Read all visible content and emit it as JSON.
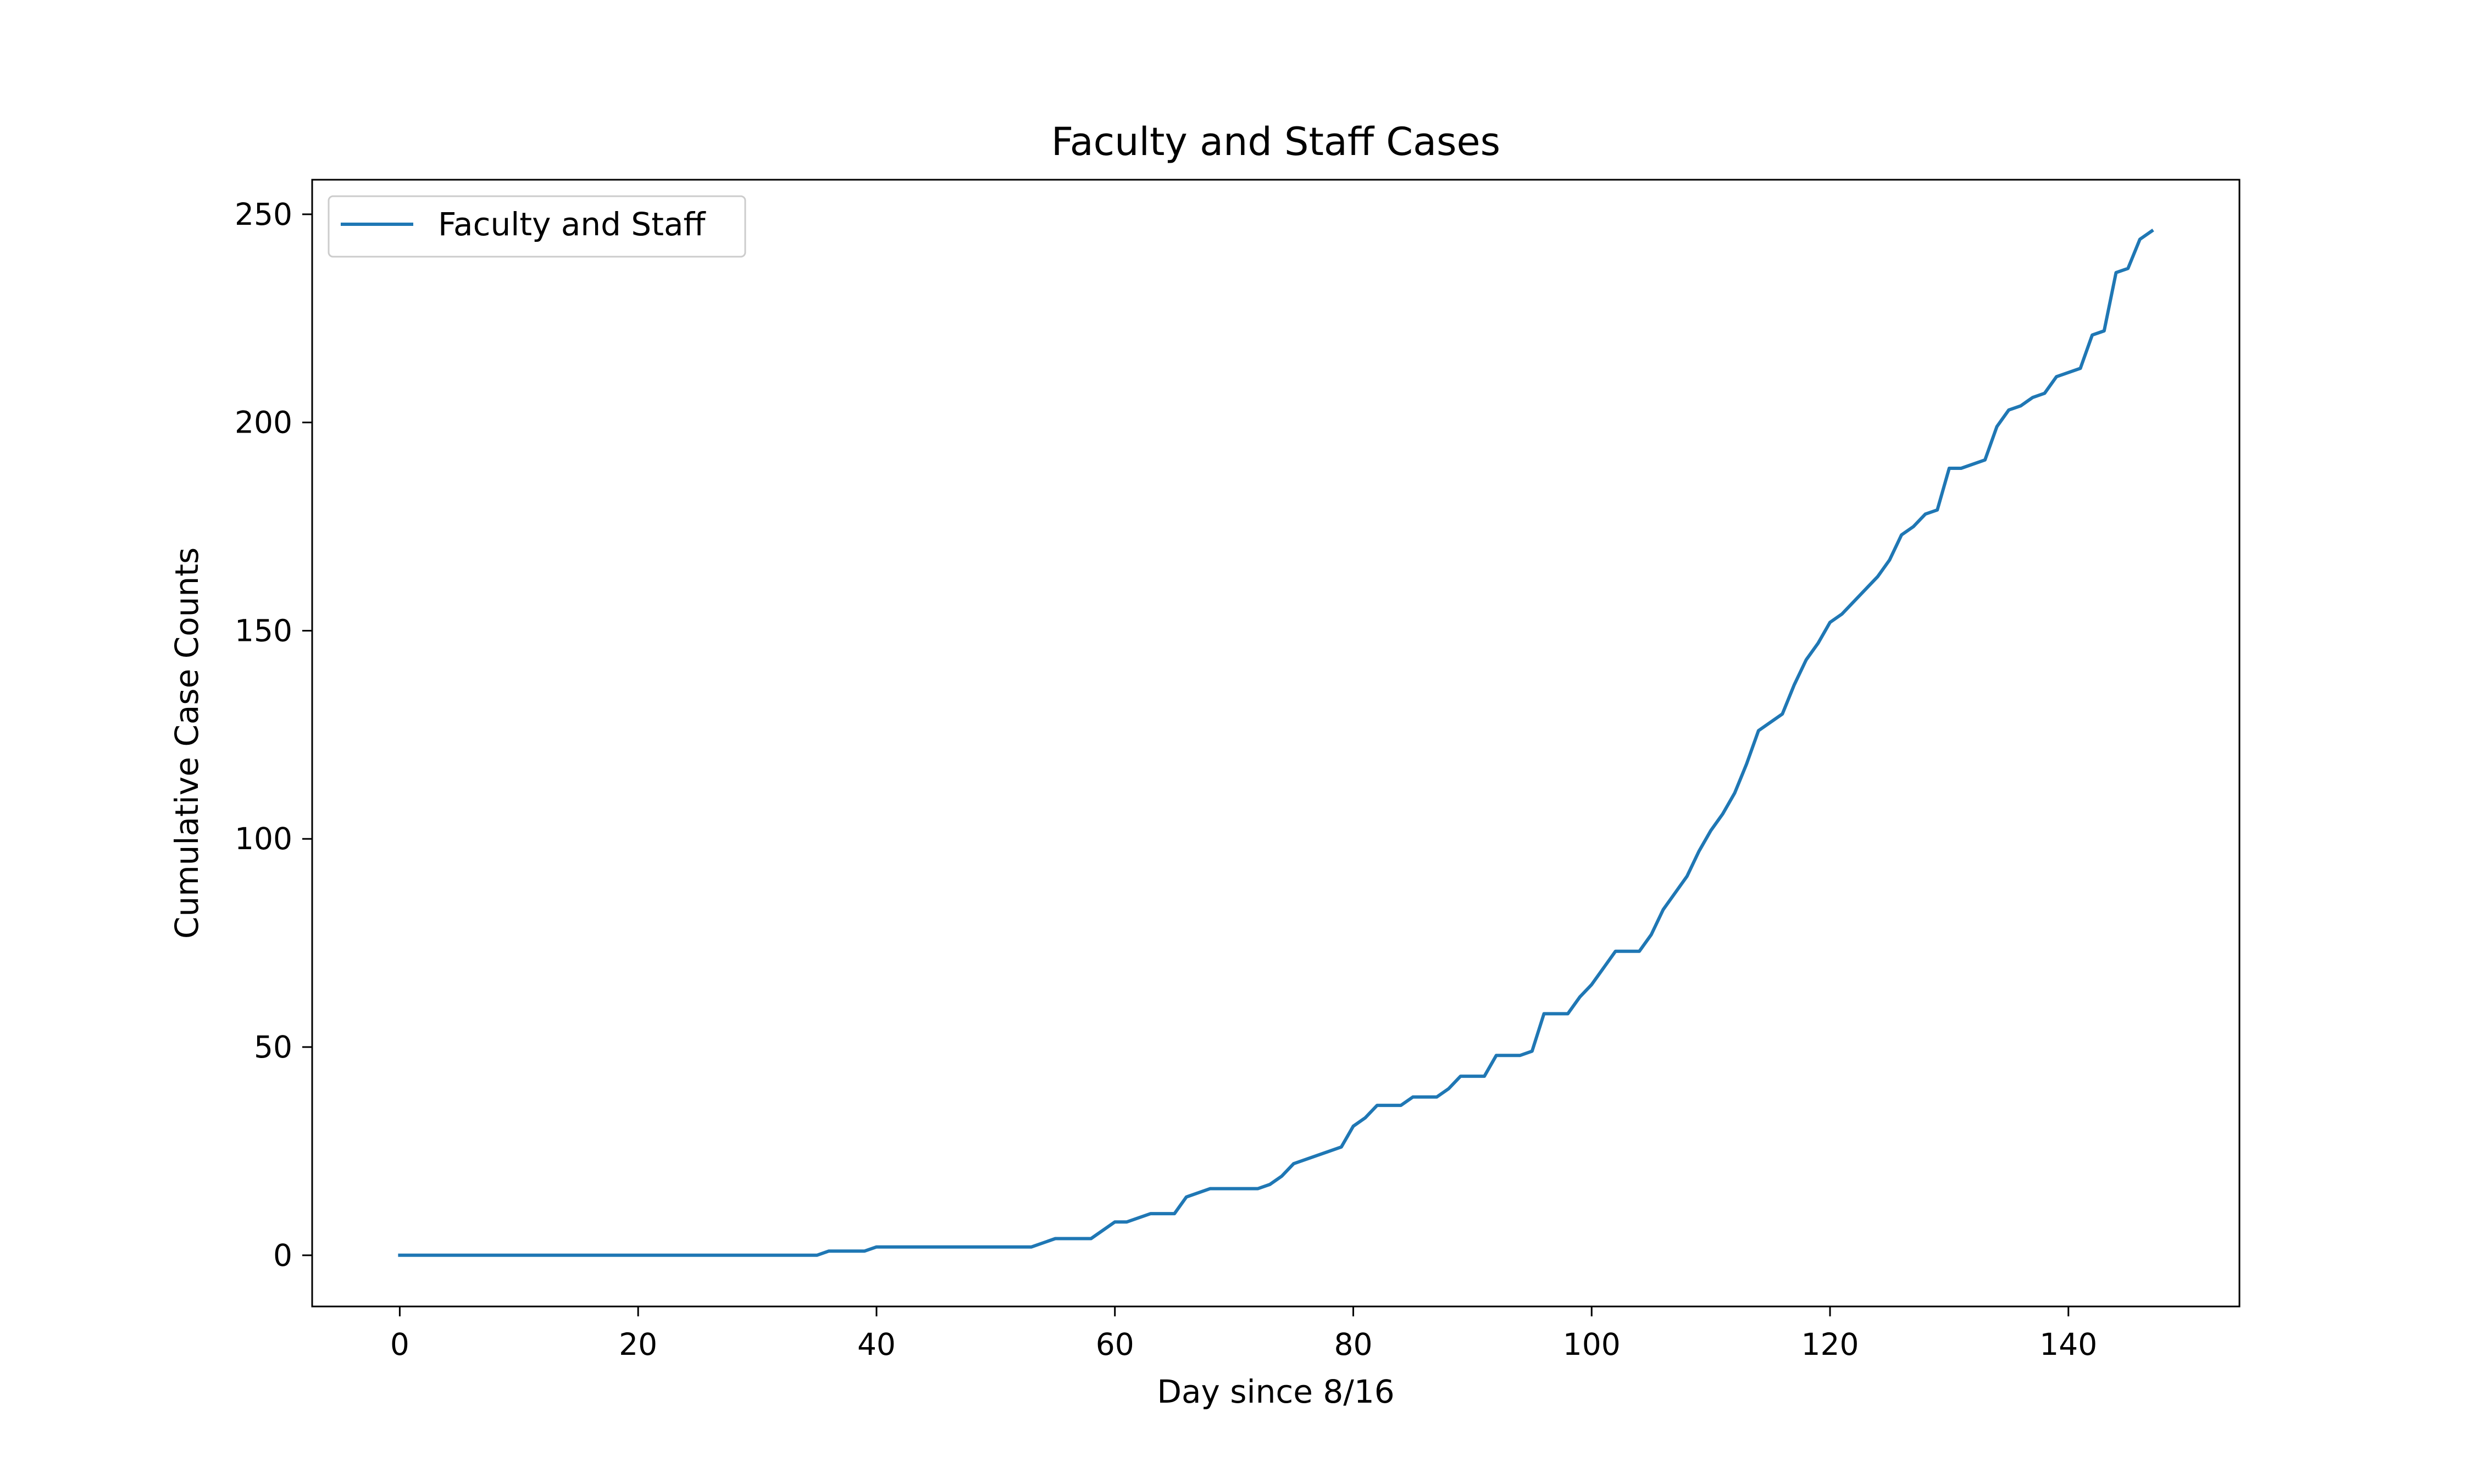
{
  "chart_data": {
    "type": "line",
    "title": "Faculty and Staff Cases",
    "xlabel": "Day since 8/16",
    "ylabel": "Cumulative Case Counts",
    "xlim": [
      -7.35,
      154.35
    ],
    "ylim": [
      -12.3,
      258.3
    ],
    "xticks": [
      0,
      20,
      40,
      60,
      80,
      100,
      120,
      140
    ],
    "yticks": [
      0,
      50,
      100,
      150,
      200,
      250
    ],
    "grid": false,
    "legend_position": "top-left",
    "series_color": "#1f77b4",
    "series": [
      {
        "name": "Faculty and Staff",
        "points": [
          [
            0,
            0
          ],
          [
            5,
            0
          ],
          [
            10,
            0
          ],
          [
            15,
            0
          ],
          [
            20,
            0
          ],
          [
            25,
            0
          ],
          [
            30,
            0
          ],
          [
            35,
            0
          ],
          [
            36,
            1
          ],
          [
            39,
            1
          ],
          [
            40,
            2
          ],
          [
            45,
            2
          ],
          [
            50,
            2
          ],
          [
            53,
            2
          ],
          [
            55,
            4
          ],
          [
            58,
            4
          ],
          [
            60,
            8
          ],
          [
            61,
            8
          ],
          [
            63,
            10
          ],
          [
            65,
            10
          ],
          [
            66,
            14
          ],
          [
            68,
            16
          ],
          [
            72,
            16
          ],
          [
            73,
            17
          ],
          [
            74,
            19
          ],
          [
            75,
            22
          ],
          [
            79,
            26
          ],
          [
            80,
            31
          ],
          [
            81,
            33
          ],
          [
            82,
            36
          ],
          [
            84,
            36
          ],
          [
            85,
            38
          ],
          [
            87,
            38
          ],
          [
            88,
            40
          ],
          [
            89,
            43
          ],
          [
            91,
            43
          ],
          [
            92,
            48
          ],
          [
            94,
            48
          ],
          [
            95,
            49
          ],
          [
            96,
            58
          ],
          [
            98,
            58
          ],
          [
            99,
            62
          ],
          [
            100,
            65
          ],
          [
            102,
            73
          ],
          [
            104,
            73
          ],
          [
            105,
            77
          ],
          [
            106,
            83
          ],
          [
            108,
            91
          ],
          [
            109,
            97
          ],
          [
            110,
            102
          ],
          [
            111,
            106
          ],
          [
            112,
            111
          ],
          [
            113,
            118
          ],
          [
            114,
            126
          ],
          [
            116,
            130
          ],
          [
            117,
            137
          ],
          [
            118,
            143
          ],
          [
            119,
            147
          ],
          [
            120,
            152
          ],
          [
            121,
            154
          ],
          [
            122,
            157
          ],
          [
            124,
            163
          ],
          [
            125,
            167
          ],
          [
            126,
            173
          ],
          [
            127,
            175
          ],
          [
            128,
            178
          ],
          [
            129,
            179
          ],
          [
            130,
            189
          ],
          [
            131,
            189
          ],
          [
            133,
            191
          ],
          [
            134,
            199
          ],
          [
            135,
            203
          ],
          [
            136,
            204
          ],
          [
            137,
            206
          ],
          [
            138,
            207
          ],
          [
            139,
            211
          ],
          [
            141,
            213
          ],
          [
            142,
            221
          ],
          [
            143,
            222
          ],
          [
            144,
            236
          ],
          [
            145,
            237
          ],
          [
            146,
            244
          ],
          [
            147,
            246
          ]
        ]
      }
    ]
  }
}
